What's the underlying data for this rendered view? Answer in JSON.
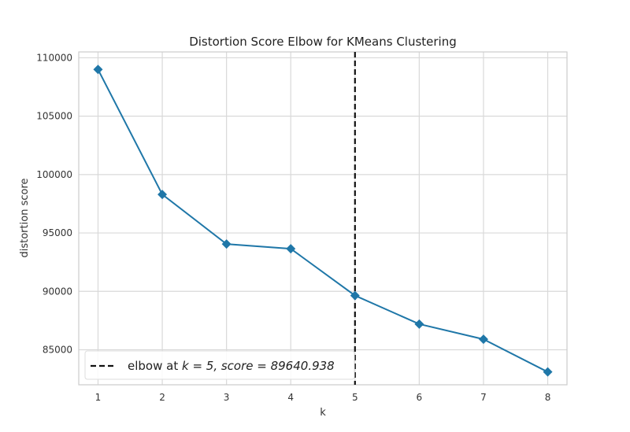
{
  "chart_data": {
    "type": "line",
    "title": "Distortion Score Elbow for KMeans Clustering",
    "xlabel": "k",
    "ylabel": "distortion score",
    "x": [
      1,
      2,
      3,
      4,
      5,
      6,
      7,
      8
    ],
    "series": [
      {
        "values": [
          109000,
          98300,
          94050,
          93650,
          89640.938,
          87200,
          85900,
          83100
        ],
        "color": "#1f77a8",
        "marker": "diamond"
      }
    ],
    "xlim": [
      0.7,
      8.3
    ],
    "ylim": [
      82000,
      110500
    ],
    "yticks": [
      85000,
      90000,
      95000,
      100000,
      105000,
      110000
    ],
    "xticks": [
      1,
      2,
      3,
      4,
      5,
      6,
      7,
      8
    ],
    "grid": true,
    "elbow": {
      "k": 5,
      "score": 89640.938,
      "color": "#111111",
      "line_style": "dashed"
    },
    "legend": {
      "placement": "bottom-left",
      "text_prefix": "elbow at ",
      "text_k": "k = 5, ",
      "text_score": "score = 89640.938"
    }
  }
}
